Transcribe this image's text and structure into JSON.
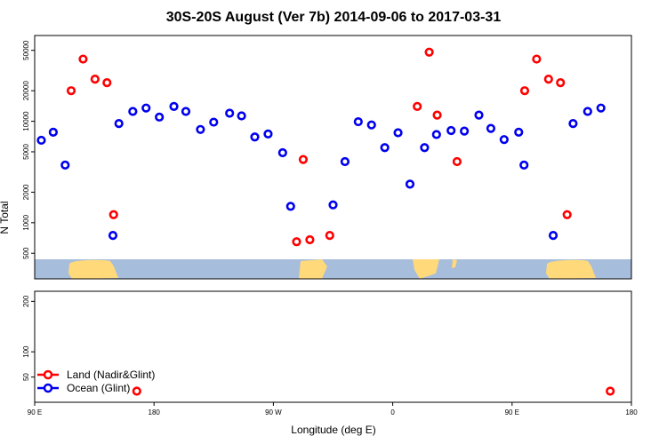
{
  "chart_data": {
    "type": "scatter",
    "title": "30S-20S August (Ver 7b)   2014-09-06 to 2017-03-31",
    "xlabel": "Longitude (deg E)",
    "ylabel": "N Total",
    "x_ticks": [
      {
        "value": 90,
        "label": "90 E"
      },
      {
        "value": 180,
        "label": "180"
      },
      {
        "value": 270,
        "label": "90 W"
      },
      {
        "value": 360,
        "label": "0"
      },
      {
        "value": 450,
        "label": "90 E"
      },
      {
        "value": 540,
        "label": "180"
      }
    ],
    "xlim": [
      90,
      540
    ],
    "top_panel": {
      "scale": "log",
      "ylim": [
        280,
        70000
      ],
      "y_ticks": [
        {
          "value": 500,
          "label": "500"
        },
        {
          "value": 1000,
          "label": "1000"
        },
        {
          "value": 2000,
          "label": "2000"
        },
        {
          "value": 5000,
          "label": "5000"
        },
        {
          "value": 10000,
          "label": "10000"
        },
        {
          "value": 20000,
          "label": "20000"
        },
        {
          "value": 50000,
          "label": "50000"
        }
      ]
    },
    "bottom_panel": {
      "ylim": [
        0,
        220
      ],
      "y_ticks": [
        {
          "value": 50,
          "label": "50"
        },
        {
          "value": 100,
          "label": "100"
        },
        {
          "value": 200,
          "label": "200"
        }
      ]
    },
    "colors": {
      "land": "#ff0000",
      "ocean": "#0000ee",
      "sea": "#a6bddb",
      "landmass": "#ffd97a"
    },
    "series": [
      {
        "name": "Land (Nadir&Glint)",
        "color": "#ff0000",
        "top": [
          [
            117.5,
            20000
          ],
          [
            126.5,
            41000
          ],
          [
            135.5,
            26000
          ],
          [
            144.5,
            24000
          ],
          [
            149.5,
            1200
          ],
          [
            459.5,
            20000
          ],
          [
            468.5,
            41000
          ],
          [
            477.5,
            26000
          ],
          [
            486.5,
            24000
          ],
          [
            491.5,
            1200
          ],
          [
            292.5,
            4200
          ],
          [
            287.5,
            650
          ],
          [
            297.5,
            680
          ],
          [
            312.5,
            750
          ],
          [
            378.5,
            14000
          ],
          [
            387.5,
            48000
          ],
          [
            393.5,
            11500
          ],
          [
            408.5,
            4000
          ]
        ],
        "bottom": [
          [
            167,
            22
          ],
          [
            524,
            22
          ]
        ]
      },
      {
        "name": "Ocean (Glint)",
        "color": "#0000ee",
        "top": [
          [
            95,
            6500
          ],
          [
            104,
            7800
          ],
          [
            113,
            3700
          ],
          [
            149,
            750
          ],
          [
            153.5,
            9500
          ],
          [
            164,
            12500
          ],
          [
            174,
            13500
          ],
          [
            184,
            11000
          ],
          [
            195,
            14000
          ],
          [
            204,
            12500
          ],
          [
            215,
            8300
          ],
          [
            225,
            9800
          ],
          [
            237,
            12000
          ],
          [
            246,
            11300
          ],
          [
            256,
            7000
          ],
          [
            266,
            7500
          ],
          [
            277,
            4900
          ],
          [
            283,
            1450
          ],
          [
            315,
            1500
          ],
          [
            324,
            4000
          ],
          [
            334,
            9900
          ],
          [
            344,
            9200
          ],
          [
            354,
            5500
          ],
          [
            364,
            7700
          ],
          [
            373,
            2400
          ],
          [
            384,
            5500
          ],
          [
            393,
            7400
          ],
          [
            404,
            8100
          ],
          [
            414,
            8000
          ],
          [
            425,
            11500
          ],
          [
            434,
            8500
          ],
          [
            444,
            6600
          ],
          [
            455,
            7800
          ],
          [
            459,
            3700
          ],
          [
            481,
            750
          ],
          [
            496,
            9500
          ],
          [
            507,
            12500
          ],
          [
            517,
            13500
          ]
        ],
        "bottom": []
      }
    ],
    "legend_position": "bottom-left"
  }
}
